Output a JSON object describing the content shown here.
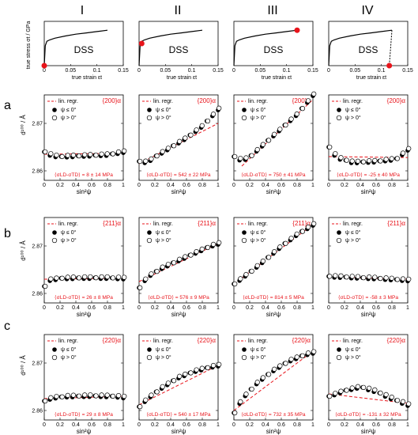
{
  "colors": {
    "accent": "#e8141b",
    "ink": "#000000"
  },
  "column_titles": [
    "I",
    "II",
    "III",
    "IV"
  ],
  "row_labels": [
    "a",
    "b",
    "c"
  ],
  "curve_label": "DSS",
  "stress_strain": {
    "ylabel": "true stress σt / GPa",
    "xlabel": "true strain εt",
    "xlim": [
      0,
      0.15
    ],
    "ylim": [
      0,
      1
    ],
    "xticks": [
      "0",
      "0.05",
      "0.1",
      "0.15"
    ]
  },
  "legend": {
    "line": "lin. regr.",
    "filled": "ψ ≤ 0°",
    "open": "ψ > 0°"
  },
  "d_axis": {
    "ylabel": "d¹⁰⁰ / Å",
    "xlabel": "sin²ψ",
    "yticks": [
      "2.86",
      "2.87"
    ],
    "xticks": [
      "0",
      "0.2",
      "0.4",
      "0.6",
      "0.8",
      "1"
    ]
  },
  "reflections": [
    "{200}α",
    "{211}α",
    "{220}α"
  ],
  "stress_results": [
    [
      "⟨σLD-σTD⟩ = 8 ± 14 MPa",
      "⟨σLD-σTD⟩ = 542 ± 22 MPa",
      "⟨σLD-σTD⟩ = 750 ± 41 MPa",
      "⟨σLD-σTD⟩ = -25 ± 40 MPa"
    ],
    [
      "⟨σLD-σTD⟩ = 26 ± 8 MPa",
      "⟨σLD-σTD⟩ = 576 ± 9 MPa",
      "⟨σLD-σTD⟩ = 814 ± 5 MPa",
      "⟨σLD-σTD⟩ = -58 ± 3 MPa"
    ],
    [
      "⟨σLD-σTD⟩ = 29 ± 8 MPa",
      "⟨σLD-σTD⟩ = 540 ± 17 MPa",
      "⟨σLD-σTD⟩ = 732 ± 35 MPa",
      "⟨σLD-σTD⟩ = -131 ± 32 MPa"
    ]
  ],
  "chart_data": {
    "type": "scatter",
    "stress_strain_curve": {
      "strain": [
        0,
        0.002,
        0.005,
        0.01,
        0.02,
        0.04,
        0.06,
        0.08,
        0.1,
        0.12
      ],
      "stress": [
        0,
        0.45,
        0.55,
        0.58,
        0.62,
        0.67,
        0.71,
        0.74,
        0.77,
        0.8
      ],
      "markers": [
        {
          "strain": 0,
          "stress": 0
        },
        {
          "strain": 0.005,
          "stress": 0.5
        },
        {
          "strain": 0.12,
          "stress": 0.8
        },
        {
          "strain": 0.115,
          "stress": 0
        }
      ]
    },
    "d_ylim": [
      2.858,
      2.876
    ],
    "d_xlim": [
      0,
      1
    ],
    "panels": [
      [
        {
          "fit": [
            [
              0,
              2.8635
            ],
            [
              1,
              2.8637
            ]
          ],
          "trend": [
            [
              0,
              2.864
            ],
            [
              0.1,
              2.8632
            ],
            [
              0.2,
              2.863
            ],
            [
              0.5,
              2.8632
            ],
            [
              0.8,
              2.8634
            ],
            [
              1,
              2.864
            ]
          ]
        },
        {
          "fit": [
            [
              0,
              2.8615
            ],
            [
              1,
              2.87
            ]
          ],
          "trend": [
            [
              0,
              2.862
            ],
            [
              0.1,
              2.8618
            ],
            [
              0.2,
              2.863
            ],
            [
              0.4,
              2.865
            ],
            [
              0.6,
              2.867
            ],
            [
              0.8,
              2.8695
            ],
            [
              1,
              2.873
            ]
          ]
        },
        {
          "fit": [
            [
              0.1,
              2.861
            ],
            [
              1,
              2.875
            ]
          ],
          "trend": [
            [
              0,
              2.863
            ],
            [
              0.1,
              2.8622
            ],
            [
              0.2,
              2.863
            ],
            [
              0.4,
              2.866
            ],
            [
              0.6,
              2.869
            ],
            [
              0.8,
              2.872
            ],
            [
              1,
              2.876
            ]
          ]
        },
        {
          "fit": [
            [
              0,
              2.863
            ],
            [
              1,
              2.8628
            ]
          ],
          "trend": [
            [
              0,
              2.865
            ],
            [
              0.1,
              2.8628
            ],
            [
              0.3,
              2.8618
            ],
            [
              0.6,
              2.862
            ],
            [
              0.85,
              2.8625
            ],
            [
              1,
              2.8645
            ]
          ]
        }
      ],
      [
        {
          "fit": [
            [
              0,
              2.863
            ],
            [
              1,
              2.8632
            ]
          ],
          "trend": [
            [
              0,
              2.8615
            ],
            [
              0.05,
              2.8628
            ],
            [
              0.2,
              2.8632
            ],
            [
              0.5,
              2.8633
            ],
            [
              0.8,
              2.8633
            ],
            [
              1,
              2.8632
            ]
          ]
        },
        {
          "fit": [
            [
              0,
              2.8625
            ],
            [
              1,
              2.8705
            ]
          ],
          "trend": [
            [
              0,
              2.8612
            ],
            [
              0.1,
              2.8635
            ],
            [
              0.3,
              2.8655
            ],
            [
              0.5,
              2.867
            ],
            [
              0.7,
              2.8685
            ],
            [
              0.9,
              2.87
            ],
            [
              1,
              2.8705
            ]
          ]
        },
        {
          "fit": [
            [
              0,
              2.862
            ],
            [
              1,
              2.8745
            ]
          ],
          "trend": [
            [
              0,
              2.862
            ],
            [
              0.2,
              2.8645
            ],
            [
              0.4,
              2.8672
            ],
            [
              0.6,
              2.87
            ],
            [
              0.8,
              2.8725
            ],
            [
              1,
              2.8745
            ]
          ]
        },
        {
          "fit": [
            [
              0,
              2.8635
            ],
            [
              1,
              2.863
            ]
          ],
          "trend": [
            [
              0,
              2.8636
            ],
            [
              0.3,
              2.8634
            ],
            [
              0.6,
              2.8632
            ],
            [
              0.9,
              2.8629
            ],
            [
              1,
              2.8628
            ]
          ]
        }
      ],
      [
        {
          "fit": [
            [
              0,
              2.8625
            ],
            [
              1,
              2.863
            ]
          ],
          "trend": [
            [
              0,
              2.862
            ],
            [
              0.1,
              2.8627
            ],
            [
              0.3,
              2.863
            ],
            [
              0.6,
              2.8631
            ],
            [
              0.9,
              2.863
            ],
            [
              1,
              2.8628
            ]
          ]
        },
        {
          "fit": [
            [
              0,
              2.8612
            ],
            [
              1,
              2.8695
            ]
          ],
          "trend": [
            [
              0,
              2.8608
            ],
            [
              0.1,
              2.8625
            ],
            [
              0.3,
              2.865
            ],
            [
              0.5,
              2.867
            ],
            [
              0.7,
              2.8683
            ],
            [
              0.9,
              2.8692
            ],
            [
              1,
              2.8695
            ]
          ]
        },
        {
          "fit": [
            [
              0,
              2.86
            ],
            [
              1,
              2.8725
            ]
          ],
          "trend": [
            [
              0,
              2.8595
            ],
            [
              0.1,
              2.8625
            ],
            [
              0.3,
              2.866
            ],
            [
              0.5,
              2.8685
            ],
            [
              0.7,
              2.8705
            ],
            [
              0.9,
              2.8718
            ],
            [
              1,
              2.8722
            ]
          ]
        },
        {
          "fit": [
            [
              0,
              2.8635
            ],
            [
              1,
              2.8615
            ]
          ],
          "trend": [
            [
              0,
              2.863
            ],
            [
              0.2,
              2.8642
            ],
            [
              0.4,
              2.865
            ],
            [
              0.6,
              2.864
            ],
            [
              0.8,
              2.8625
            ],
            [
              1,
              2.8612
            ]
          ]
        }
      ]
    ]
  }
}
